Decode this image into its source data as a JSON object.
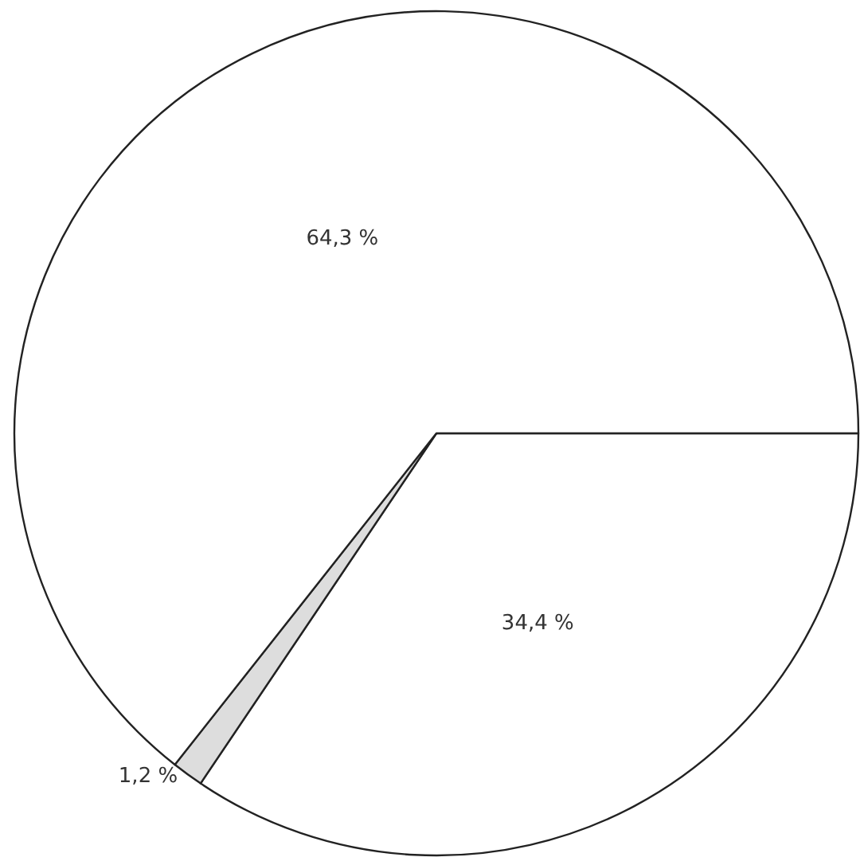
{
  "chart_data": {
    "type": "pie",
    "categories": [
      null,
      null,
      null
    ],
    "values": [
      34.4,
      1.2,
      64.3
    ],
    "value_labels": [
      "34,4 %",
      "1,2 %",
      "64,3 %"
    ],
    "colors": [
      "#ffffff",
      "#dddddd",
      "#ffffff"
    ]
  }
}
